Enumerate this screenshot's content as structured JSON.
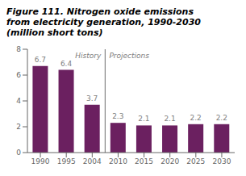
{
  "chart_data": {
    "type": "bar",
    "title": "Figure 111. Nitrogen oxide emissions\nfrom electricity generation, 1990-2030\n(million short tons)",
    "categories": [
      "1990",
      "1995",
      "2004",
      "2010",
      "2015",
      "2020",
      "2025",
      "2030"
    ],
    "values": [
      6.7,
      6.4,
      3.7,
      2.3,
      2.1,
      2.1,
      2.2,
      2.2
    ],
    "color": "#6b2060",
    "ylim": [
      0,
      8
    ],
    "yticks": [
      0,
      2,
      4,
      6,
      8
    ],
    "data_labels": true,
    "grid": false,
    "annotations": [
      {
        "text": "History",
        "from": "1990",
        "to": "2004"
      },
      {
        "text": "Projections",
        "from": "2010",
        "to": "2030"
      }
    ]
  }
}
